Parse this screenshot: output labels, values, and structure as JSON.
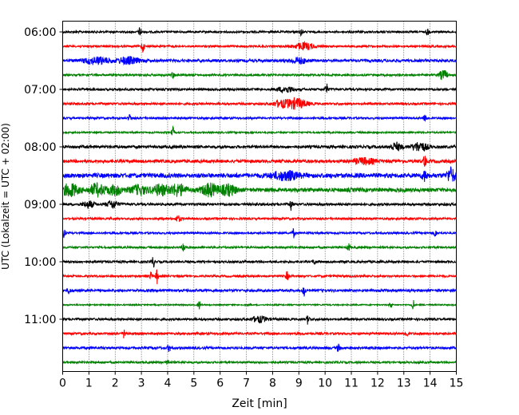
{
  "chart_data": {
    "type": "line",
    "subtype": "helicorder-seismogram",
    "title": "",
    "xlabel": "Zeit  [min]",
    "ylabel": "UTC (Lokalzeit = UTC + 02:00)",
    "xlim": [
      0,
      15
    ],
    "x_ticks": [
      "0",
      "1",
      "2",
      "3",
      "4",
      "5",
      "6",
      "7",
      "8",
      "9",
      "10",
      "11",
      "12",
      "13",
      "14",
      "15"
    ],
    "y_tick_labels": [
      "06:00",
      "07:00",
      "08:00",
      "09:00",
      "10:00",
      "11:00"
    ],
    "grid": "vertical dotted lines at each minute",
    "row_interval_min": 15,
    "row_colors": [
      "#000000",
      "#ff0000",
      "#0000ff",
      "#008000"
    ],
    "rows": [
      {
        "start": "06:00",
        "color": "#000000",
        "noise": 0.18,
        "events": [
          {
            "t": 2.95,
            "a": 0.9,
            "d": 0.05
          },
          {
            "t": 9.1,
            "a": 0.7,
            "d": 0.05
          },
          {
            "t": 13.9,
            "a": 0.6,
            "d": 0.05
          }
        ]
      },
      {
        "start": "06:15",
        "color": "#ff0000",
        "noise": 0.18,
        "events": [
          {
            "t": 3.05,
            "a": 1.1,
            "d": 0.05
          },
          {
            "t": 9.2,
            "a": 0.6,
            "d": 0.4
          }
        ]
      },
      {
        "start": "06:30",
        "color": "#0000ff",
        "noise": 0.25,
        "events": [
          {
            "t": 1.3,
            "a": 0.6,
            "d": 0.5
          },
          {
            "t": 2.5,
            "a": 0.6,
            "d": 0.4
          },
          {
            "t": 9.0,
            "a": 0.5,
            "d": 0.3
          }
        ]
      },
      {
        "start": "06:45",
        "color": "#008000",
        "noise": 0.18,
        "events": [
          {
            "t": 4.2,
            "a": 0.6,
            "d": 0.05
          },
          {
            "t": 14.5,
            "a": 0.9,
            "d": 0.15
          }
        ]
      },
      {
        "start": "07:00",
        "color": "#000000",
        "noise": 0.2,
        "events": [
          {
            "t": 10.05,
            "a": 1.0,
            "d": 0.05
          },
          {
            "t": 8.5,
            "a": 0.5,
            "d": 0.3
          }
        ]
      },
      {
        "start": "07:15",
        "color": "#ff0000",
        "noise": 0.2,
        "events": [
          {
            "t": 8.9,
            "a": 0.9,
            "d": 0.4
          },
          {
            "t": 8.3,
            "a": 0.5,
            "d": 0.3
          }
        ]
      },
      {
        "start": "07:30",
        "color": "#0000ff",
        "noise": 0.18,
        "events": [
          {
            "t": 2.55,
            "a": 0.7,
            "d": 0.05
          },
          {
            "t": 13.8,
            "a": 0.5,
            "d": 0.1
          }
        ]
      },
      {
        "start": "07:45",
        "color": "#008000",
        "noise": 0.15,
        "events": [
          {
            "t": 4.2,
            "a": 0.9,
            "d": 0.05
          }
        ]
      },
      {
        "start": "08:00",
        "color": "#000000",
        "noise": 0.25,
        "events": [
          {
            "t": 12.7,
            "a": 0.7,
            "d": 0.2
          },
          {
            "t": 13.6,
            "a": 0.8,
            "d": 0.3
          }
        ]
      },
      {
        "start": "08:15",
        "color": "#ff0000",
        "noise": 0.28,
        "events": [
          {
            "t": 13.8,
            "a": 1.2,
            "d": 0.05
          },
          {
            "t": 11.5,
            "a": 0.5,
            "d": 0.4
          }
        ]
      },
      {
        "start": "08:30",
        "color": "#0000ff",
        "noise": 0.4,
        "events": [
          {
            "t": 8.5,
            "a": 0.7,
            "d": 0.5
          },
          {
            "t": 13.8,
            "a": 0.8,
            "d": 0.1
          },
          {
            "t": 14.8,
            "a": 1.3,
            "d": 0.15
          }
        ]
      },
      {
        "start": "08:45",
        "color": "#008000",
        "noise": 0.35,
        "events": [
          {
            "t": 0.3,
            "a": 1.1,
            "d": 0.3
          },
          {
            "t": 1.3,
            "a": 1.0,
            "d": 0.3
          },
          {
            "t": 2.0,
            "a": 0.8,
            "d": 0.3
          },
          {
            "t": 2.9,
            "a": 0.8,
            "d": 0.3
          },
          {
            "t": 3.7,
            "a": 0.9,
            "d": 0.3
          },
          {
            "t": 4.4,
            "a": 1.0,
            "d": 0.3
          },
          {
            "t": 5.6,
            "a": 1.1,
            "d": 0.3
          },
          {
            "t": 6.3,
            "a": 0.9,
            "d": 0.3
          }
        ]
      },
      {
        "start": "09:00",
        "color": "#000000",
        "noise": 0.22,
        "events": [
          {
            "t": 1.0,
            "a": 0.6,
            "d": 0.2
          },
          {
            "t": 1.9,
            "a": 0.7,
            "d": 0.2
          },
          {
            "t": 8.7,
            "a": 1.0,
            "d": 0.05
          }
        ]
      },
      {
        "start": "09:15",
        "color": "#ff0000",
        "noise": 0.18,
        "events": [
          {
            "t": 4.4,
            "a": 0.5,
            "d": 0.1
          }
        ]
      },
      {
        "start": "09:30",
        "color": "#0000ff",
        "noise": 0.18,
        "events": [
          {
            "t": 0.05,
            "a": 0.7,
            "d": 0.05
          },
          {
            "t": 8.8,
            "a": 0.8,
            "d": 0.05
          },
          {
            "t": 14.2,
            "a": 0.7,
            "d": 0.05
          }
        ]
      },
      {
        "start": "09:45",
        "color": "#008000",
        "noise": 0.18,
        "events": [
          {
            "t": 4.6,
            "a": 1.0,
            "d": 0.05
          },
          {
            "t": 10.9,
            "a": 0.7,
            "d": 0.05
          }
        ]
      },
      {
        "start": "10:00",
        "color": "#000000",
        "noise": 0.2,
        "events": [
          {
            "t": 3.45,
            "a": 1.0,
            "d": 0.05
          },
          {
            "t": 9.6,
            "a": 0.5,
            "d": 0.05
          }
        ]
      },
      {
        "start": "10:15",
        "color": "#ff0000",
        "noise": 0.18,
        "events": [
          {
            "t": 3.6,
            "a": 1.3,
            "d": 0.05
          },
          {
            "t": 3.35,
            "a": 0.7,
            "d": 0.05
          },
          {
            "t": 8.55,
            "a": 0.8,
            "d": 0.05
          }
        ]
      },
      {
        "start": "10:30",
        "color": "#0000ff",
        "noise": 0.22,
        "events": [
          {
            "t": 0.25,
            "a": 0.6,
            "d": 0.05
          },
          {
            "t": 9.2,
            "a": 0.9,
            "d": 0.05
          }
        ]
      },
      {
        "start": "10:45",
        "color": "#008000",
        "noise": 0.12,
        "events": [
          {
            "t": 5.2,
            "a": 0.8,
            "d": 0.05
          },
          {
            "t": 12.5,
            "a": 0.5,
            "d": 0.05
          },
          {
            "t": 13.35,
            "a": 1.0,
            "d": 0.05
          }
        ]
      },
      {
        "start": "11:00",
        "color": "#000000",
        "noise": 0.2,
        "events": [
          {
            "t": 9.35,
            "a": 0.9,
            "d": 0.05
          },
          {
            "t": 7.5,
            "a": 0.5,
            "d": 0.3
          }
        ]
      },
      {
        "start": "11:15",
        "color": "#ff0000",
        "noise": 0.2,
        "events": [
          {
            "t": 2.35,
            "a": 0.9,
            "d": 0.05
          },
          {
            "t": 13.1,
            "a": 0.7,
            "d": 0.05
          }
        ]
      },
      {
        "start": "11:30",
        "color": "#0000ff",
        "noise": 0.22,
        "events": [
          {
            "t": 4.05,
            "a": 0.8,
            "d": 0.05
          },
          {
            "t": 10.5,
            "a": 0.7,
            "d": 0.05
          }
        ]
      },
      {
        "start": "11:45",
        "color": "#008000",
        "noise": 0.18,
        "events": [
          {
            "t": 4.0,
            "a": 0.6,
            "d": 0.05
          }
        ]
      }
    ]
  }
}
